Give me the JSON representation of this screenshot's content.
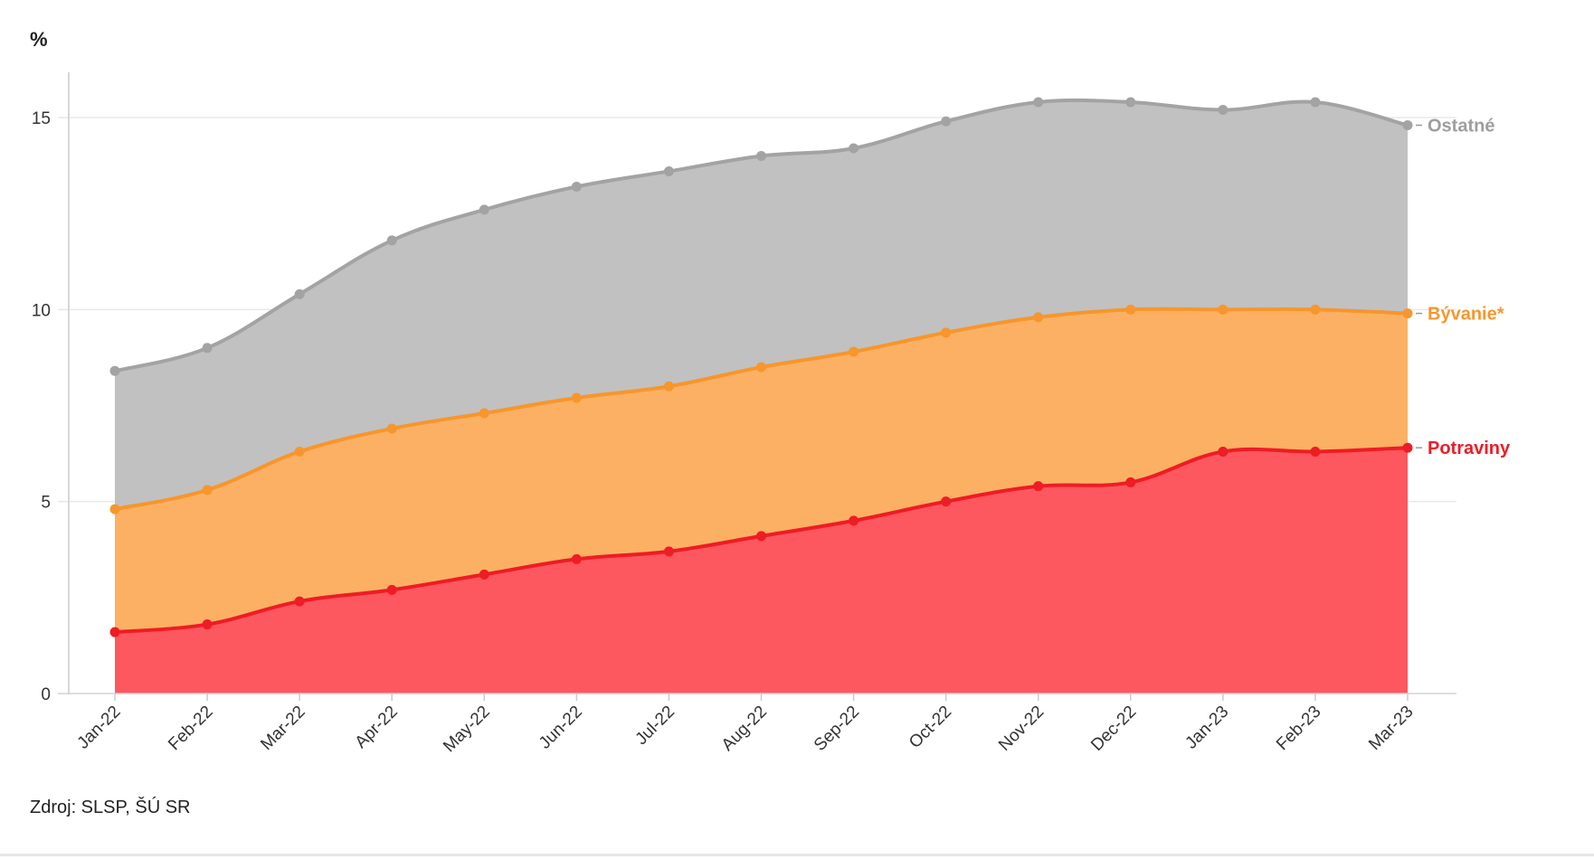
{
  "chart_data": {
    "type": "area",
    "stacked": false,
    "ylabel": "%",
    "xlabel": "",
    "ylim": [
      0,
      16
    ],
    "yticks": [
      0,
      5,
      10,
      15
    ],
    "grid": true,
    "legend_placement": "right end labels",
    "categories": [
      "Jan-22",
      "Feb-22",
      "Mar-22",
      "Apr-22",
      "May-22",
      "Jun-22",
      "Jul-22",
      "Aug-22",
      "Sep-22",
      "Oct-22",
      "Nov-22",
      "Dec-22",
      "Jan-23",
      "Feb-23",
      "Mar-23"
    ],
    "series": [
      {
        "name": "Ostatné",
        "line_color": "#a3a3a3",
        "fill_color": "#c1c1c1",
        "label_color": "#9e9e9e",
        "values": [
          8.4,
          9.0,
          10.4,
          11.8,
          12.6,
          13.2,
          13.6,
          14.0,
          14.2,
          14.9,
          15.4,
          15.4,
          15.2,
          15.4,
          14.8
        ]
      },
      {
        "name": "Bývanie*",
        "line_color": "#f7962c",
        "fill_color": "#fcb063",
        "label_color": "#f7962c",
        "values": [
          4.8,
          5.3,
          6.3,
          6.9,
          7.3,
          7.7,
          8.0,
          8.5,
          8.9,
          9.4,
          9.8,
          10.0,
          10.0,
          10.0,
          9.9
        ]
      },
      {
        "name": "Potraviny",
        "line_color": "#ee1c25",
        "fill_color": "#fd575f",
        "label_color": "#ee1c25",
        "values": [
          1.6,
          1.8,
          2.4,
          2.7,
          3.1,
          3.5,
          3.7,
          4.1,
          4.5,
          5.0,
          5.4,
          5.5,
          6.3,
          6.3,
          6.4
        ]
      }
    ]
  },
  "source": "Zdroj: SLSP, ŠÚ SR"
}
